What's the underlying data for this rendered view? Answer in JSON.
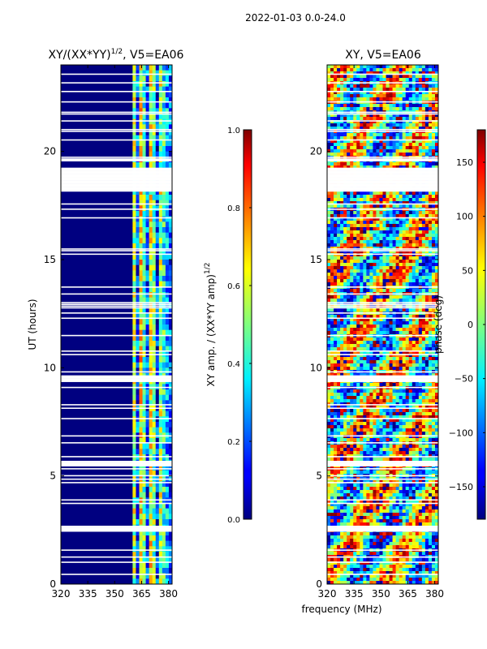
{
  "figure": {
    "suptitle": "2022-01-03 0.0-24.0",
    "xlabel_shared": "frequency (MHz)"
  },
  "chart_data": [
    {
      "type": "heatmap",
      "title": "XY/(XX*YY)",
      "title_exponent": "1/2",
      "title_suffix": ", V5=EA06",
      "xlabel": "",
      "ylabel": "UT (hours)",
      "xlim": [
        320,
        382
      ],
      "ylim": [
        0,
        24
      ],
      "xticks": [
        "320",
        "335",
        "350",
        "365",
        "380"
      ],
      "yticks": [
        "0",
        "5",
        "10",
        "15",
        "20"
      ],
      "colormap": "jet",
      "colorbar": {
        "label": "XY amp. / (XX*YY amp)",
        "label_exponent": "1/2",
        "vmin": 0.0,
        "vmax": 1.0,
        "ticks": [
          "0.0",
          "0.2",
          "0.4",
          "0.6",
          "0.8",
          "1.0"
        ]
      },
      "dominant_value": 0.0,
      "bright_frequency_bands_mhz": [
        [
          360,
          384
        ]
      ]
    },
    {
      "type": "heatmap",
      "title": "XY, V5=EA06",
      "xlabel": "frequency (MHz)",
      "ylabel": "",
      "xlim": [
        320,
        382
      ],
      "ylim": [
        0,
        24
      ],
      "xticks": [
        "320",
        "335",
        "350",
        "365",
        "380"
      ],
      "yticks": [
        "0",
        "5",
        "10",
        "15",
        "20"
      ],
      "colormap": "jet",
      "colorbar": {
        "label": "phase (deg)",
        "vmin": -180,
        "vmax": 180,
        "ticks": [
          "-150",
          "-100",
          "-50",
          "0",
          "50",
          "100",
          "150"
        ]
      },
      "value_range": [
        -180,
        180
      ]
    }
  ]
}
